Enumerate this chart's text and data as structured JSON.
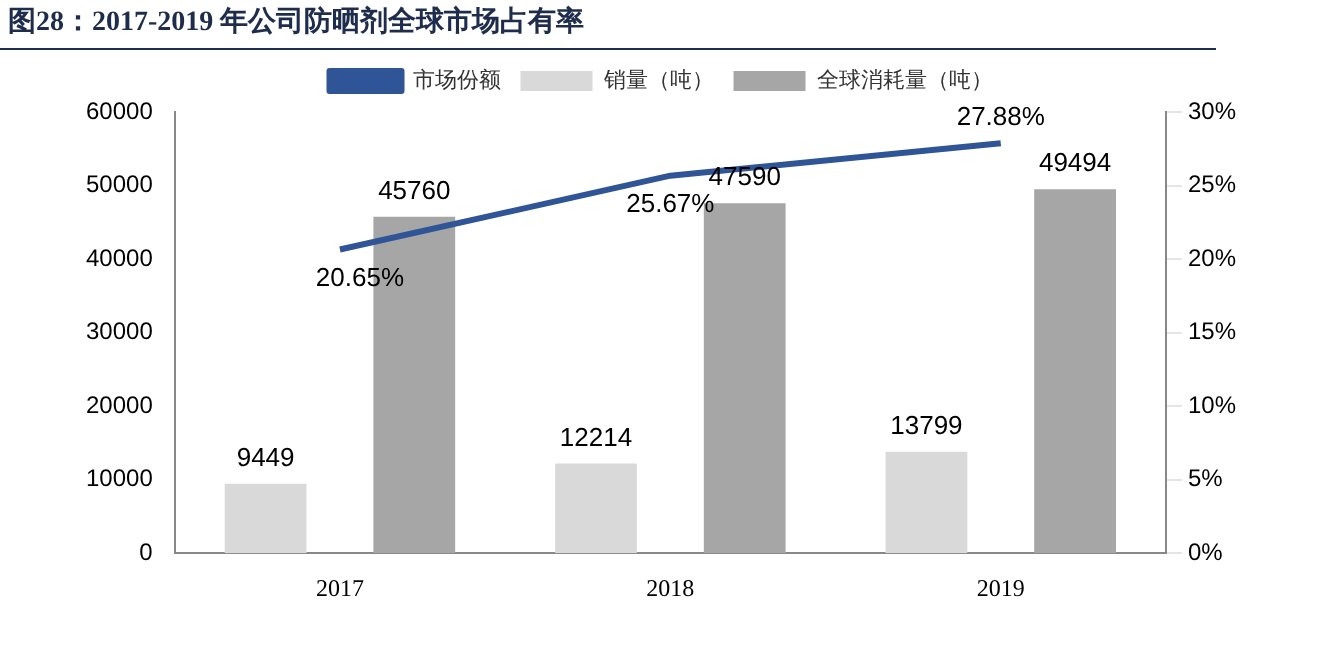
{
  "chart_data": {
    "type": "bar",
    "title": "图28：2017-2019 年公司防晒剂全球市场占有率",
    "categories": [
      "2017",
      "2018",
      "2019"
    ],
    "series": [
      {
        "name": "销量（吨）",
        "color": "#d9d9d9",
        "values": [
          9449,
          12214,
          13799
        ]
      },
      {
        "name": "全球消耗量（吨）",
        "color": "#a6a6a6",
        "values": [
          45760,
          47590,
          49494
        ]
      },
      {
        "name": "市场份额",
        "type": "line",
        "axis": "y2",
        "color": "#2f5597",
        "values": [
          20.65,
          25.67,
          27.88
        ],
        "value_labels": [
          "20.65%",
          "25.67%",
          "27.88%"
        ]
      }
    ],
    "ylim": [
      0,
      60000
    ],
    "yticks": [
      0,
      10000,
      20000,
      30000,
      40000,
      50000,
      60000
    ],
    "y2lim": [
      0,
      30
    ],
    "y2ticks": [
      {
        "value": 0,
        "label": "0%"
      },
      {
        "value": 5,
        "label": "5%"
      },
      {
        "value": 10,
        "label": "10%"
      },
      {
        "value": 15,
        "label": "15%"
      },
      {
        "value": 20,
        "label": "20%"
      },
      {
        "value": 25,
        "label": "25%"
      },
      {
        "value": 30,
        "label": "30%"
      }
    ],
    "data_labels": true,
    "legend": "top",
    "grid": false,
    "marker": "none"
  }
}
